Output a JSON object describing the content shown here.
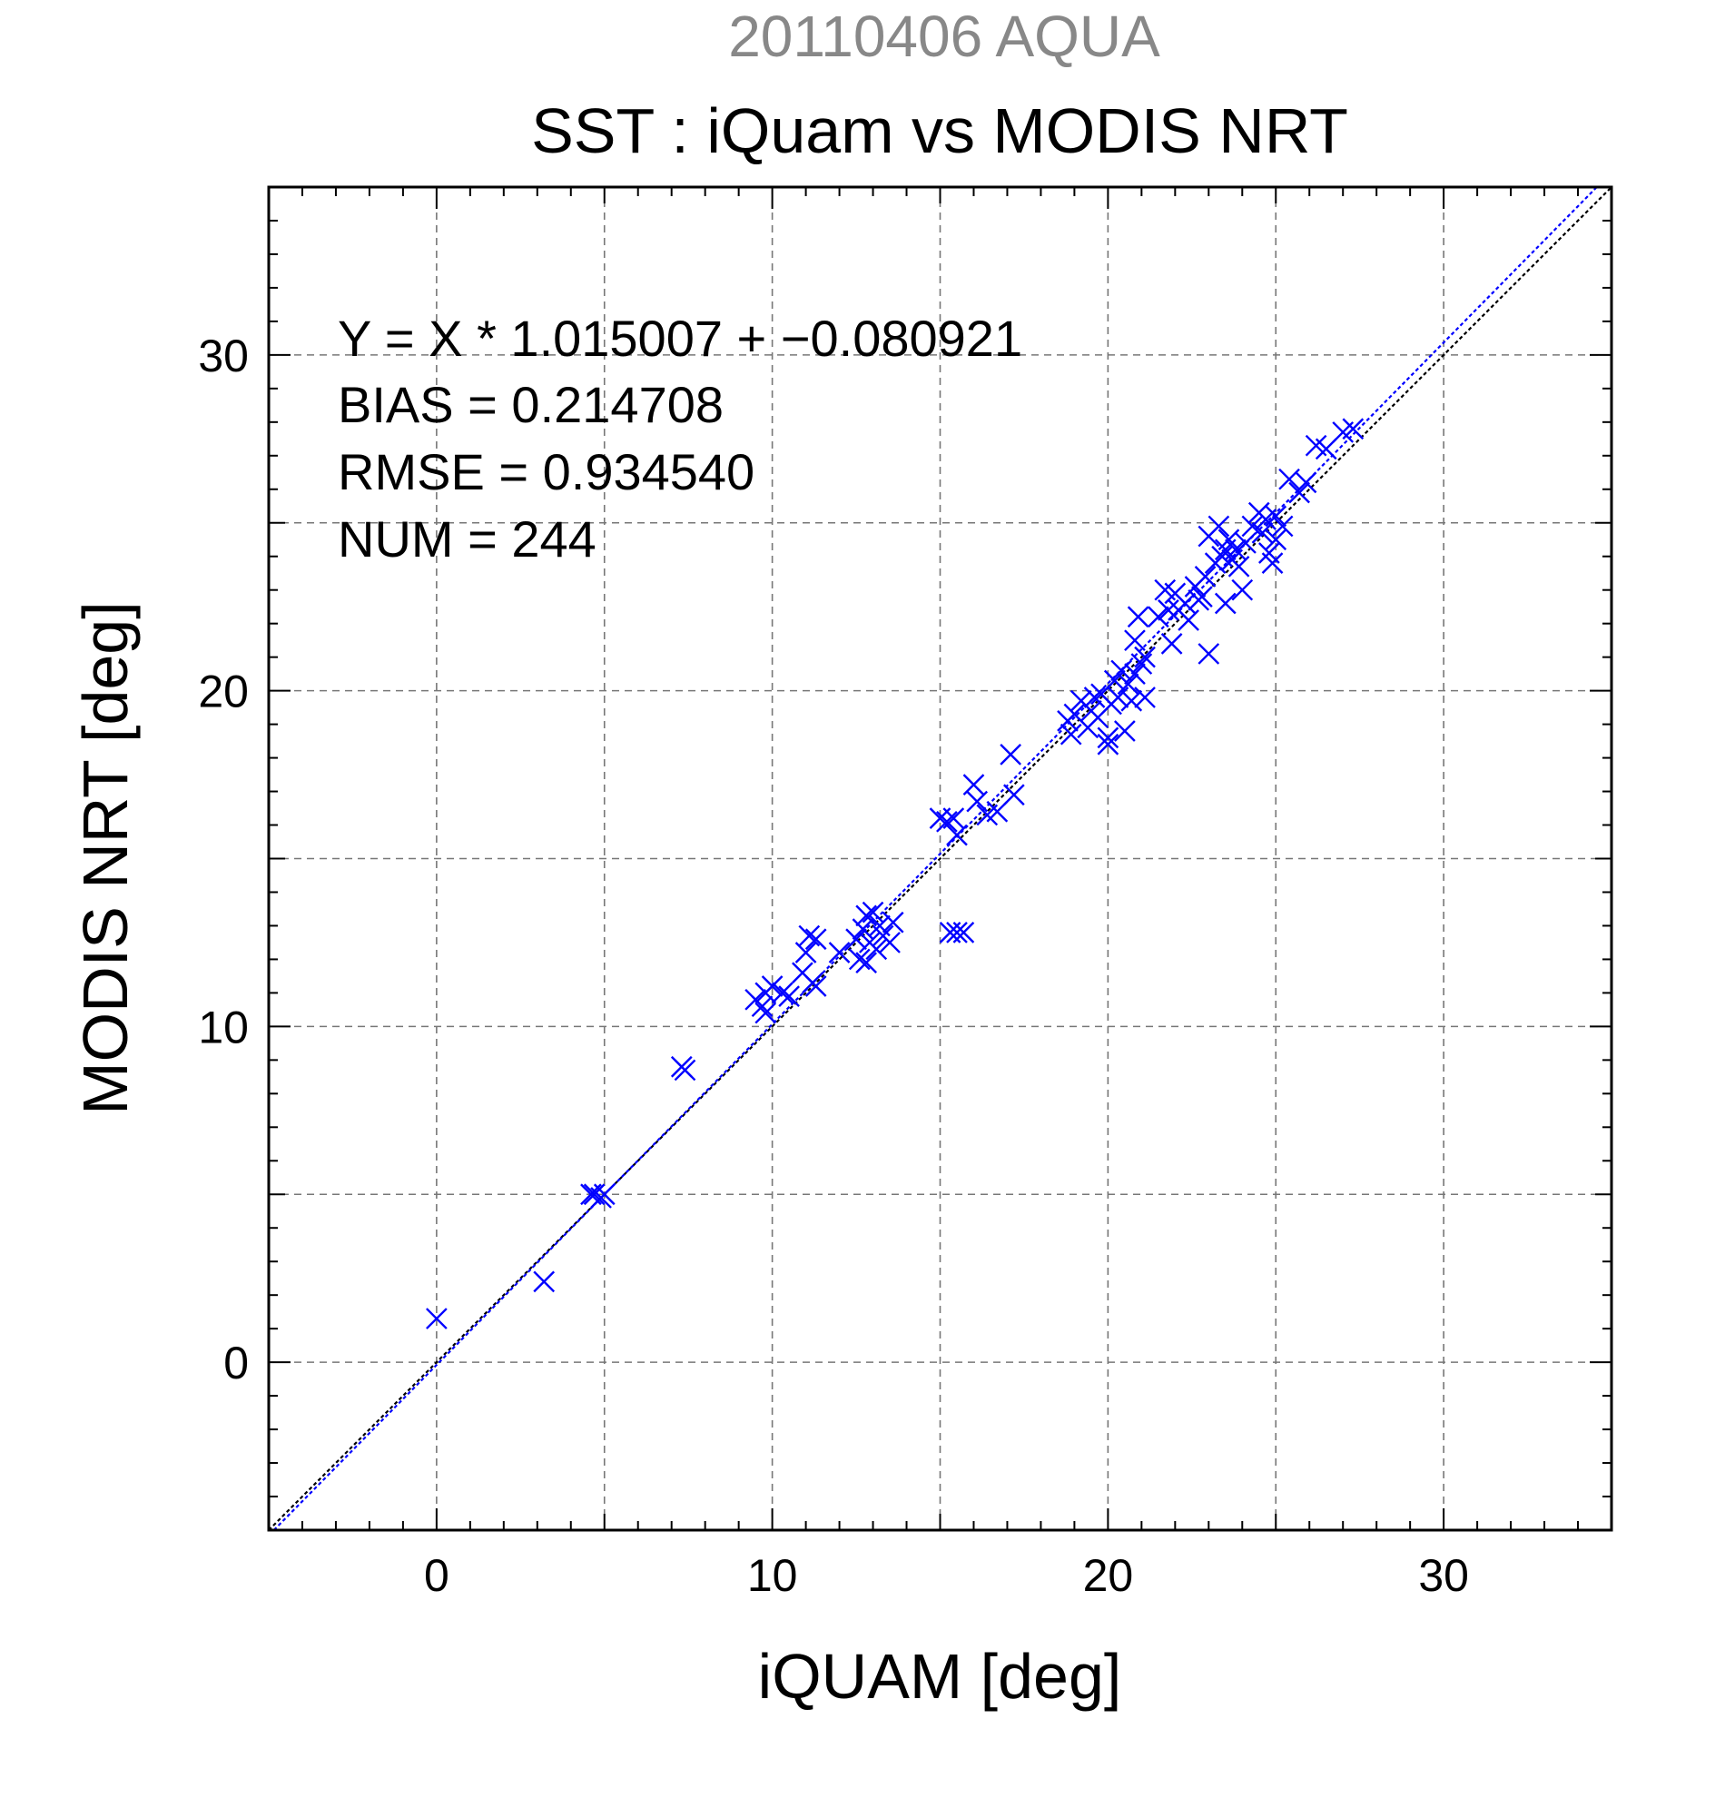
{
  "chart_data": {
    "type": "scatter",
    "subtitle": "20110406 AQUA",
    "title": "SST : iQuam vs MODIS NRT",
    "xlabel": "iQUAM [deg]",
    "ylabel": "MODIS NRT [deg]",
    "xlim": [
      -5,
      35
    ],
    "ylim": [
      -5,
      35
    ],
    "xticks": [
      0,
      10,
      20,
      30
    ],
    "yticks": [
      0,
      10,
      20,
      30
    ],
    "grid": true,
    "annotations": [
      "Y = X * 1.015007 + −0.080921",
      "BIAS = 0.214708",
      "RMSE = 0.934540",
      "NUM = 244"
    ],
    "lines": [
      {
        "kind": "one-to-one",
        "slope": 1,
        "intercept": 0,
        "color": "#000000",
        "style": "dotted"
      },
      {
        "kind": "regression",
        "slope": 1.015007,
        "intercept": -0.080921,
        "color": "#0000ff",
        "style": "dotted"
      }
    ],
    "series": [
      {
        "marker": "x",
        "color": "#0000ff",
        "points": [
          [
            0.0,
            1.3
          ],
          [
            3.2,
            2.4
          ],
          [
            4.6,
            5.0
          ],
          [
            4.7,
            5.0
          ],
          [
            4.9,
            4.9
          ],
          [
            5.0,
            5.0
          ],
          [
            7.3,
            8.8
          ],
          [
            7.4,
            8.7
          ],
          [
            9.5,
            10.8
          ],
          [
            9.7,
            10.6
          ],
          [
            9.8,
            11.0
          ],
          [
            9.8,
            10.4
          ],
          [
            10.0,
            11.2
          ],
          [
            10.3,
            11.0
          ],
          [
            10.5,
            10.9
          ],
          [
            10.9,
            11.6
          ],
          [
            11.1,
            12.7
          ],
          [
            11.2,
            11.3
          ],
          [
            11.3,
            12.6
          ],
          [
            11.3,
            11.2
          ],
          [
            11.0,
            12.2
          ],
          [
            12.0,
            12.2
          ],
          [
            12.5,
            12.6
          ],
          [
            12.6,
            12.0
          ],
          [
            12.7,
            12.9
          ],
          [
            12.8,
            11.9
          ],
          [
            12.8,
            13.3
          ],
          [
            12.9,
            12.5
          ],
          [
            13.0,
            13.4
          ],
          [
            13.1,
            12.3
          ],
          [
            13.2,
            13.0
          ],
          [
            13.3,
            12.7
          ],
          [
            13.5,
            12.5
          ],
          [
            13.6,
            13.1
          ],
          [
            15.0,
            16.2
          ],
          [
            15.2,
            16.1
          ],
          [
            15.4,
            16.2
          ],
          [
            15.5,
            12.8
          ],
          [
            15.7,
            12.8
          ],
          [
            15.3,
            12.8
          ],
          [
            15.5,
            15.7
          ],
          [
            16.0,
            17.2
          ],
          [
            16.1,
            16.7
          ],
          [
            16.4,
            16.3
          ],
          [
            16.7,
            16.4
          ],
          [
            17.1,
            18.1
          ],
          [
            17.2,
            16.9
          ],
          [
            18.8,
            19.1
          ],
          [
            18.9,
            18.7
          ],
          [
            19.0,
            19.3
          ],
          [
            19.2,
            19.7
          ],
          [
            19.4,
            18.9
          ],
          [
            19.5,
            19.4
          ],
          [
            19.6,
            19.8
          ],
          [
            19.7,
            19.2
          ],
          [
            19.8,
            19.9
          ],
          [
            20.0,
            18.6
          ],
          [
            20.0,
            18.4
          ],
          [
            20.1,
            19.6
          ],
          [
            20.2,
            20.3
          ],
          [
            20.3,
            19.8
          ],
          [
            20.4,
            20.6
          ],
          [
            20.5,
            18.8
          ],
          [
            20.6,
            20.2
          ],
          [
            20.7,
            19.7
          ],
          [
            20.8,
            20.5
          ],
          [
            20.8,
            21.5
          ],
          [
            20.9,
            22.2
          ],
          [
            21.0,
            20.8
          ],
          [
            21.1,
            21.0
          ],
          [
            21.1,
            19.8
          ],
          [
            21.5,
            22.2
          ],
          [
            21.7,
            23.0
          ],
          [
            21.8,
            22.4
          ],
          [
            21.9,
            21.4
          ],
          [
            22.0,
            22.9
          ],
          [
            22.1,
            22.4
          ],
          [
            22.3,
            22.6
          ],
          [
            22.4,
            22.1
          ],
          [
            22.6,
            23.1
          ],
          [
            22.7,
            22.7
          ],
          [
            22.8,
            22.8
          ],
          [
            22.9,
            23.4
          ],
          [
            23.0,
            21.1
          ],
          [
            23.0,
            24.6
          ],
          [
            23.2,
            23.8
          ],
          [
            23.3,
            24.9
          ],
          [
            23.4,
            24.0
          ],
          [
            23.5,
            22.6
          ],
          [
            23.5,
            24.2
          ],
          [
            23.6,
            24.5
          ],
          [
            23.7,
            23.9
          ],
          [
            23.8,
            24.2
          ],
          [
            23.9,
            23.7
          ],
          [
            24.0,
            23.0
          ],
          [
            24.1,
            24.4
          ],
          [
            24.3,
            24.9
          ],
          [
            24.5,
            25.3
          ],
          [
            24.6,
            24.7
          ],
          [
            24.7,
            25.1
          ],
          [
            24.8,
            24.1
          ],
          [
            24.9,
            23.8
          ],
          [
            25.0,
            25.2
          ],
          [
            25.0,
            24.5
          ],
          [
            25.2,
            24.9
          ],
          [
            25.4,
            26.3
          ],
          [
            25.7,
            25.9
          ],
          [
            25.9,
            26.2
          ],
          [
            26.2,
            27.3
          ],
          [
            26.5,
            27.2
          ],
          [
            27.0,
            27.7
          ],
          [
            27.3,
            27.8
          ]
        ]
      }
    ]
  }
}
